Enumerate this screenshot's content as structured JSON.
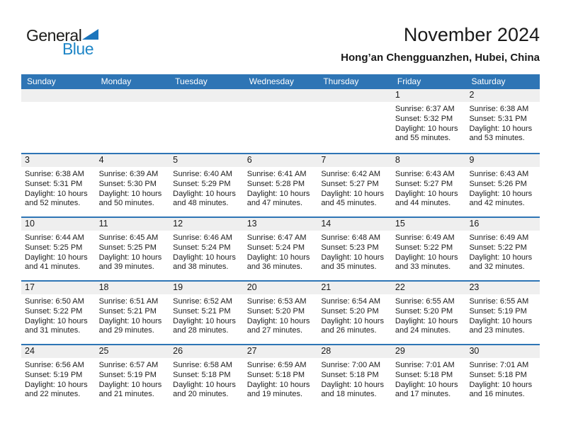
{
  "logo": {
    "part1": "General",
    "part2": "Blue"
  },
  "header": {
    "title": "November 2024",
    "subtitle": "Hong’an Chengguanzhen, Hubei, China"
  },
  "colors": {
    "header_bar_blue": "#2e75b5",
    "week_divider_blue": "#2e75b5",
    "day_number_strip_gray": "#efefef",
    "logo_text_blue": "#1f86c7",
    "logo_triangle_blue": "#1b75bc"
  },
  "weekday_headers": [
    "Sunday",
    "Monday",
    "Tuesday",
    "Wednesday",
    "Thursday",
    "Friday",
    "Saturday"
  ],
  "weeks": [
    {
      "cells": [
        null,
        null,
        null,
        null,
        null,
        {
          "day": "1",
          "lines": [
            "Sunrise: 6:37 AM",
            "Sunset: 5:32 PM",
            "Daylight: 10 hours",
            "and 55 minutes."
          ]
        },
        {
          "day": "2",
          "lines": [
            "Sunrise: 6:38 AM",
            "Sunset: 5:31 PM",
            "Daylight: 10 hours",
            "and 53 minutes."
          ]
        }
      ]
    },
    {
      "cells": [
        {
          "day": "3",
          "lines": [
            "Sunrise: 6:38 AM",
            "Sunset: 5:31 PM",
            "Daylight: 10 hours",
            "and 52 minutes."
          ]
        },
        {
          "day": "4",
          "lines": [
            "Sunrise: 6:39 AM",
            "Sunset: 5:30 PM",
            "Daylight: 10 hours",
            "and 50 minutes."
          ]
        },
        {
          "day": "5",
          "lines": [
            "Sunrise: 6:40 AM",
            "Sunset: 5:29 PM",
            "Daylight: 10 hours",
            "and 48 minutes."
          ]
        },
        {
          "day": "6",
          "lines": [
            "Sunrise: 6:41 AM",
            "Sunset: 5:28 PM",
            "Daylight: 10 hours",
            "and 47 minutes."
          ]
        },
        {
          "day": "7",
          "lines": [
            "Sunrise: 6:42 AM",
            "Sunset: 5:27 PM",
            "Daylight: 10 hours",
            "and 45 minutes."
          ]
        },
        {
          "day": "8",
          "lines": [
            "Sunrise: 6:43 AM",
            "Sunset: 5:27 PM",
            "Daylight: 10 hours",
            "and 44 minutes."
          ]
        },
        {
          "day": "9",
          "lines": [
            "Sunrise: 6:43 AM",
            "Sunset: 5:26 PM",
            "Daylight: 10 hours",
            "and 42 minutes."
          ]
        }
      ]
    },
    {
      "cells": [
        {
          "day": "10",
          "lines": [
            "Sunrise: 6:44 AM",
            "Sunset: 5:25 PM",
            "Daylight: 10 hours",
            "and 41 minutes."
          ]
        },
        {
          "day": "11",
          "lines": [
            "Sunrise: 6:45 AM",
            "Sunset: 5:25 PM",
            "Daylight: 10 hours",
            "and 39 minutes."
          ]
        },
        {
          "day": "12",
          "lines": [
            "Sunrise: 6:46 AM",
            "Sunset: 5:24 PM",
            "Daylight: 10 hours",
            "and 38 minutes."
          ]
        },
        {
          "day": "13",
          "lines": [
            "Sunrise: 6:47 AM",
            "Sunset: 5:24 PM",
            "Daylight: 10 hours",
            "and 36 minutes."
          ]
        },
        {
          "day": "14",
          "lines": [
            "Sunrise: 6:48 AM",
            "Sunset: 5:23 PM",
            "Daylight: 10 hours",
            "and 35 minutes."
          ]
        },
        {
          "day": "15",
          "lines": [
            "Sunrise: 6:49 AM",
            "Sunset: 5:22 PM",
            "Daylight: 10 hours",
            "and 33 minutes."
          ]
        },
        {
          "day": "16",
          "lines": [
            "Sunrise: 6:49 AM",
            "Sunset: 5:22 PM",
            "Daylight: 10 hours",
            "and 32 minutes."
          ]
        }
      ]
    },
    {
      "cells": [
        {
          "day": "17",
          "lines": [
            "Sunrise: 6:50 AM",
            "Sunset: 5:22 PM",
            "Daylight: 10 hours",
            "and 31 minutes."
          ]
        },
        {
          "day": "18",
          "lines": [
            "Sunrise: 6:51 AM",
            "Sunset: 5:21 PM",
            "Daylight: 10 hours",
            "and 29 minutes."
          ]
        },
        {
          "day": "19",
          "lines": [
            "Sunrise: 6:52 AM",
            "Sunset: 5:21 PM",
            "Daylight: 10 hours",
            "and 28 minutes."
          ]
        },
        {
          "day": "20",
          "lines": [
            "Sunrise: 6:53 AM",
            "Sunset: 5:20 PM",
            "Daylight: 10 hours",
            "and 27 minutes."
          ]
        },
        {
          "day": "21",
          "lines": [
            "Sunrise: 6:54 AM",
            "Sunset: 5:20 PM",
            "Daylight: 10 hours",
            "and 26 minutes."
          ]
        },
        {
          "day": "22",
          "lines": [
            "Sunrise: 6:55 AM",
            "Sunset: 5:20 PM",
            "Daylight: 10 hours",
            "and 24 minutes."
          ]
        },
        {
          "day": "23",
          "lines": [
            "Sunrise: 6:55 AM",
            "Sunset: 5:19 PM",
            "Daylight: 10 hours",
            "and 23 minutes."
          ]
        }
      ]
    },
    {
      "cells": [
        {
          "day": "24",
          "lines": [
            "Sunrise: 6:56 AM",
            "Sunset: 5:19 PM",
            "Daylight: 10 hours",
            "and 22 minutes."
          ]
        },
        {
          "day": "25",
          "lines": [
            "Sunrise: 6:57 AM",
            "Sunset: 5:19 PM",
            "Daylight: 10 hours",
            "and 21 minutes."
          ]
        },
        {
          "day": "26",
          "lines": [
            "Sunrise: 6:58 AM",
            "Sunset: 5:18 PM",
            "Daylight: 10 hours",
            "and 20 minutes."
          ]
        },
        {
          "day": "27",
          "lines": [
            "Sunrise: 6:59 AM",
            "Sunset: 5:18 PM",
            "Daylight: 10 hours",
            "and 19 minutes."
          ]
        },
        {
          "day": "28",
          "lines": [
            "Sunrise: 7:00 AM",
            "Sunset: 5:18 PM",
            "Daylight: 10 hours",
            "and 18 minutes."
          ]
        },
        {
          "day": "29",
          "lines": [
            "Sunrise: 7:01 AM",
            "Sunset: 5:18 PM",
            "Daylight: 10 hours",
            "and 17 minutes."
          ]
        },
        {
          "day": "30",
          "lines": [
            "Sunrise: 7:01 AM",
            "Sunset: 5:18 PM",
            "Daylight: 10 hours",
            "and 16 minutes."
          ]
        }
      ]
    }
  ]
}
